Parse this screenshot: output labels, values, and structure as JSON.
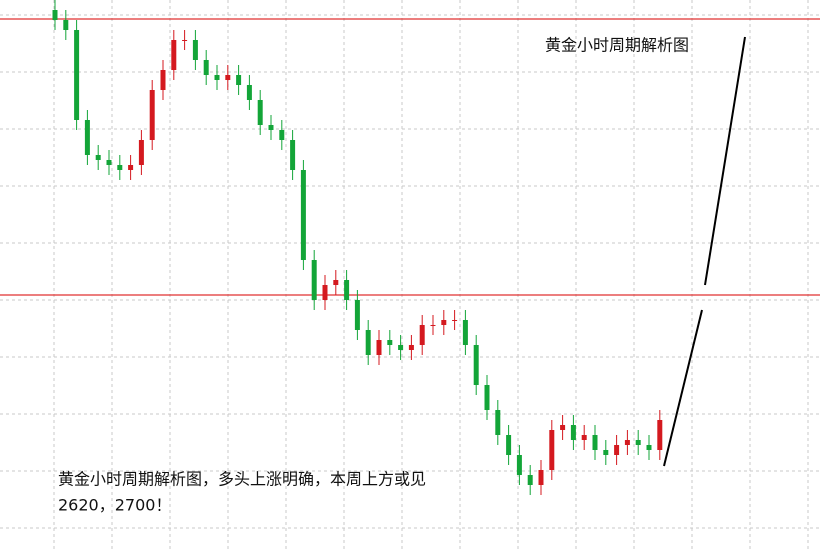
{
  "chart_data": {
    "type": "candlestick",
    "title": "黄金小时周期解析图",
    "annotations": [
      "黄金小时周期解析图，多头上涨明确，本周上方或见",
      "2620，2700！"
    ],
    "ylim": [
      0,
      549
    ],
    "up_color": "#d4191f",
    "down_color": "#13a538",
    "open": [
      539,
      529,
      519,
      429,
      394,
      389,
      384,
      379,
      384,
      409,
      459,
      479,
      509,
      509,
      489,
      474,
      469,
      474,
      464,
      449,
      424,
      419,
      409,
      379,
      289,
      249,
      264,
      269,
      249,
      219,
      194,
      209,
      204,
      199,
      204,
      224,
      224,
      229,
      229,
      204,
      164,
      139,
      114,
      94,
      74,
      64,
      79,
      119,
      124,
      109,
      114,
      99,
      94,
      104,
      109,
      104,
      99
    ],
    "close": [
      529,
      519,
      429,
      394,
      389,
      384,
      379,
      384,
      409,
      459,
      479,
      509,
      509,
      489,
      474,
      469,
      474,
      464,
      449,
      424,
      419,
      409,
      379,
      289,
      249,
      264,
      269,
      249,
      219,
      194,
      209,
      204,
      199,
      204,
      224,
      224,
      229,
      229,
      204,
      164,
      139,
      114,
      94,
      74,
      64,
      79,
      119,
      124,
      109,
      114,
      99,
      94,
      104,
      109,
      104,
      99,
      129
    ],
    "high": [
      549,
      539,
      529,
      439,
      404,
      399,
      394,
      394,
      419,
      469,
      489,
      519,
      519,
      519,
      499,
      484,
      484,
      484,
      474,
      459,
      434,
      429,
      419,
      389,
      299,
      274,
      279,
      279,
      259,
      229,
      219,
      219,
      214,
      214,
      234,
      234,
      239,
      239,
      239,
      214,
      174,
      149,
      124,
      104,
      84,
      89,
      129,
      134,
      134,
      124,
      124,
      109,
      114,
      119,
      119,
      114,
      139
    ],
    "low": [
      519,
      509,
      419,
      384,
      379,
      374,
      369,
      369,
      374,
      399,
      449,
      469,
      499,
      479,
      464,
      459,
      459,
      454,
      439,
      414,
      409,
      399,
      369,
      279,
      239,
      239,
      254,
      239,
      209,
      184,
      184,
      194,
      189,
      189,
      194,
      214,
      214,
      219,
      194,
      154,
      129,
      104,
      84,
      64,
      54,
      54,
      69,
      109,
      99,
      99,
      89,
      84,
      84,
      94,
      94,
      89,
      89
    ]
  }
}
